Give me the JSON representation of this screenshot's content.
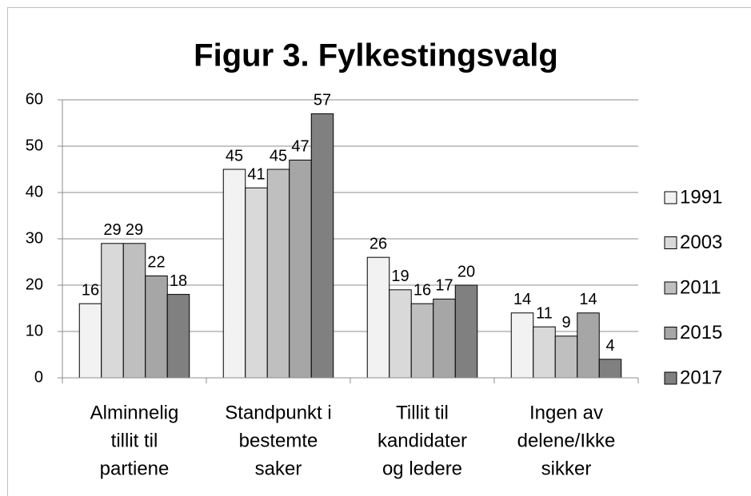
{
  "chart_data": {
    "type": "bar",
    "title": "Figur 3. Fylkestingsvalg",
    "categories": [
      [
        "Alminnelig",
        "tillit til",
        "partiene"
      ],
      [
        "Standpunkt i",
        "bestemte",
        "saker"
      ],
      [
        "Tillit til",
        "kandidater",
        "og ledere"
      ],
      [
        "Ingen av",
        "delene/Ikke",
        "sikker"
      ]
    ],
    "series": [
      {
        "name": "1991",
        "color": "#f2f2f2",
        "values": [
          16,
          45,
          26,
          14
        ]
      },
      {
        "name": "2003",
        "color": "#d9d9d9",
        "values": [
          29,
          41,
          19,
          11
        ]
      },
      {
        "name": "2011",
        "color": "#bfbfbf",
        "values": [
          29,
          45,
          16,
          9
        ]
      },
      {
        "name": "2015",
        "color": "#a6a6a6",
        "values": [
          22,
          47,
          17,
          14
        ]
      },
      {
        "name": "2017",
        "color": "#808080",
        "values": [
          18,
          57,
          20,
          4
        ]
      }
    ],
    "ylim": [
      0,
      60
    ],
    "yticks": [
      0,
      10,
      20,
      30,
      40,
      50,
      60
    ],
    "grid": true,
    "legend": "right"
  }
}
